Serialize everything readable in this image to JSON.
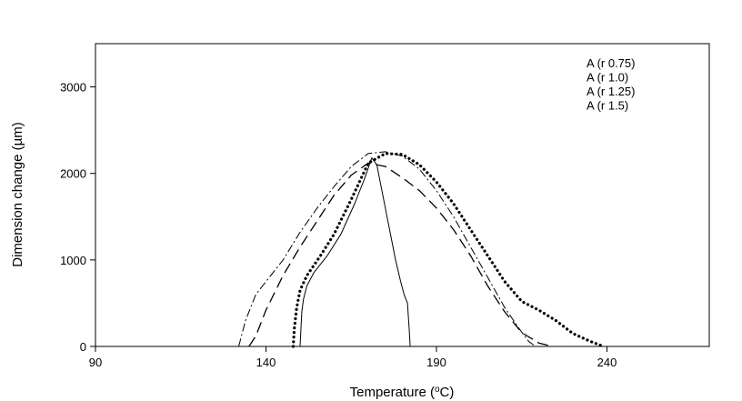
{
  "chart_data": {
    "type": "line",
    "title": "",
    "xlabel": "Temperature (",
    "xlabel_sup": "o",
    "xlabel_unit": "C)",
    "ylabel": "Dimension change (µm)",
    "xlim": [
      90,
      270
    ],
    "ylim": [
      0,
      3500
    ],
    "xticks": [
      "90",
      "140",
      "190",
      "240"
    ],
    "yticks": [
      "0",
      "1000",
      "2000",
      "3000"
    ],
    "grid": false,
    "legend_position": "top-right",
    "series": [
      {
        "name": "A (r 0.75)",
        "dash": "solid",
        "x": [
          150,
          150.5,
          151,
          152,
          154,
          158,
          162,
          166,
          169,
          171,
          172.5,
          174,
          176,
          178,
          179.5,
          180.5,
          181.5,
          182,
          182.3
        ],
        "y": [
          0,
          400,
          550,
          700,
          850,
          1050,
          1300,
          1650,
          1950,
          2180,
          2100,
          1800,
          1400,
          1000,
          750,
          600,
          500,
          200,
          0
        ]
      },
      {
        "name": "A (r 1.0)",
        "dash": "dotted",
        "x": [
          148,
          148.3,
          149,
          150,
          152,
          156,
          160,
          165,
          170,
          175,
          180,
          185,
          190,
          195,
          200,
          205,
          210,
          215,
          220,
          225,
          230,
          235,
          239
        ],
        "y": [
          0,
          200,
          450,
          650,
          820,
          1050,
          1300,
          1700,
          2120,
          2230,
          2220,
          2100,
          1900,
          1650,
          1350,
          1050,
          750,
          520,
          420,
          300,
          150,
          60,
          0
        ]
      },
      {
        "name": "A (r 1.25)",
        "dash": "dashed",
        "x": [
          135,
          137,
          140,
          145,
          150,
          155,
          160,
          165,
          170,
          175,
          180,
          185,
          190,
          195,
          200,
          205,
          210,
          215,
          220,
          224
        ],
        "y": [
          0,
          120,
          420,
          820,
          1150,
          1450,
          1750,
          1980,
          2120,
          2080,
          1950,
          1800,
          1600,
          1350,
          1050,
          700,
          400,
          160,
          40,
          0
        ]
      },
      {
        "name": "A (r 1.5)",
        "dash": "dash-dot",
        "x": [
          132,
          134,
          137,
          140,
          145,
          150,
          155,
          160,
          165,
          170,
          175,
          180,
          185,
          190,
          195,
          200,
          205,
          210,
          214,
          217,
          219
        ],
        "y": [
          0,
          300,
          600,
          750,
          1000,
          1320,
          1600,
          1850,
          2080,
          2230,
          2250,
          2200,
          2050,
          1800,
          1500,
          1150,
          800,
          450,
          220,
          60,
          0
        ]
      }
    ]
  }
}
